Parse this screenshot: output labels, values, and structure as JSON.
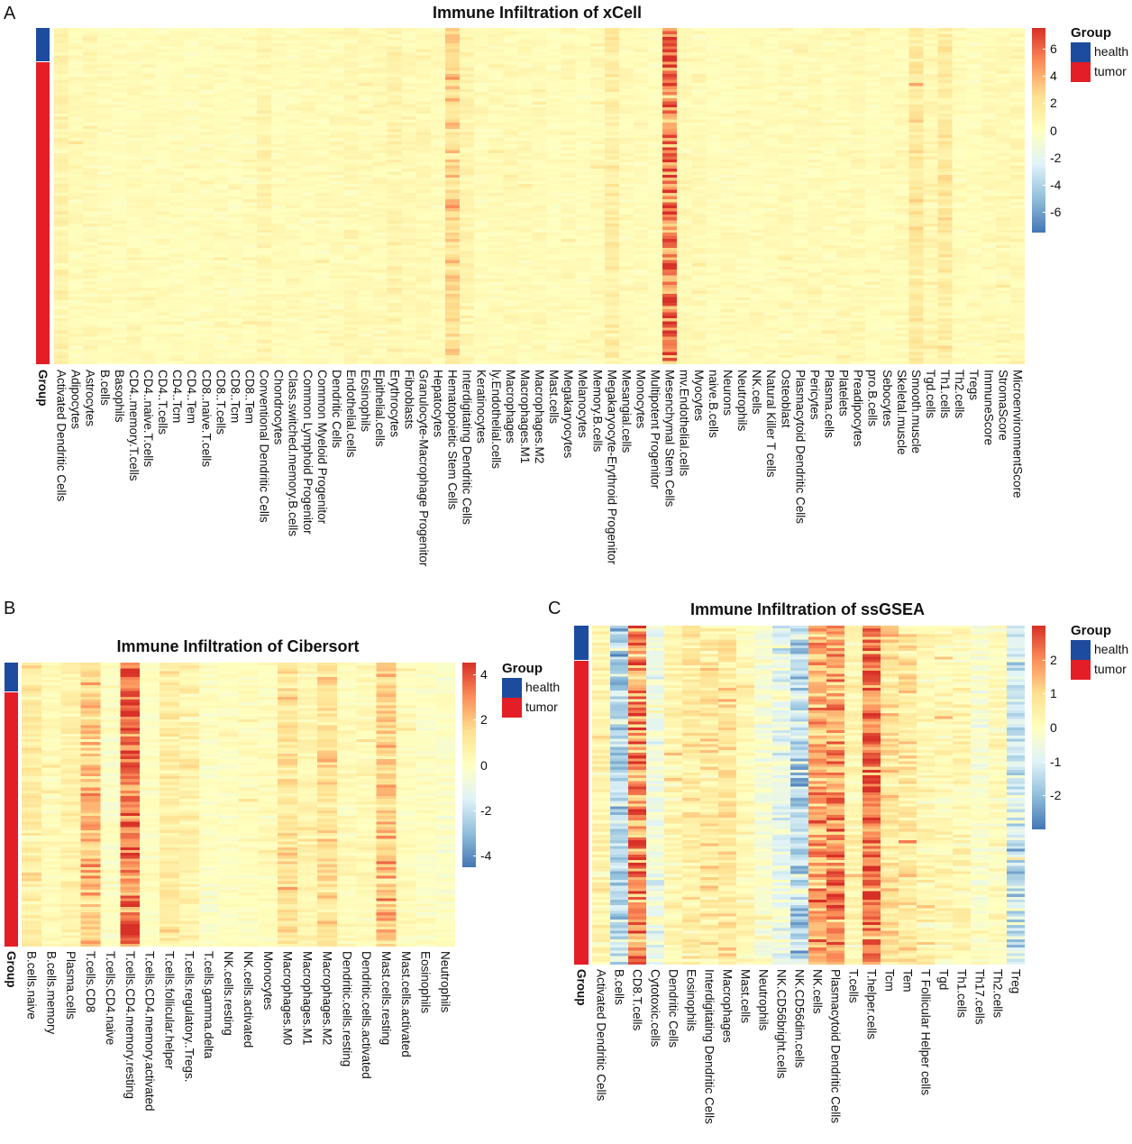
{
  "figure": {
    "panel_letters": [
      "A",
      "B",
      "C"
    ],
    "group_legend": {
      "title": "Group",
      "items": [
        {
          "label": "health",
          "color": "#1d4c9e"
        },
        {
          "label": "tumor",
          "color": "#e41e26"
        }
      ]
    },
    "group_row_label": "Group"
  },
  "chart_data": [
    {
      "type": "heatmap",
      "title": "Immune Infiltration of xCell",
      "colorbar_ticks": [
        6,
        4,
        2,
        0,
        -2,
        -4,
        -6
      ],
      "color_range": [
        -7.5,
        7.5
      ],
      "palette": [
        "#4575B4",
        "#91BFDB",
        "#E0F3F8",
        "#FFFFBF",
        "#FEE090",
        "#FC8D59",
        "#D73027"
      ],
      "health_fraction": 0.1,
      "columns": [
        "Activated Dendritic Cells",
        "Adipocytes",
        "Astrocytes",
        "B.cells",
        "Basophils",
        "CD4..memory.T.cells",
        "CD4..naive.T.cells",
        "CD4..T.cells",
        "CD4..Tcm",
        "CD4..Tem",
        "CD8..naive.T.cells",
        "CD8..T.cells",
        "CD8..Tcm",
        "CD8..Tem",
        "Conventional Dendritic Cells",
        "Chondrocytes",
        "Class.switched.memory.B.cells",
        "Common Lymphoid Progenitor",
        "Common Myeloid Progenitor",
        "Dendritic Cells",
        "Endothelial.cells",
        "Eosinophils",
        "Epithelial.cells",
        "Erythrocytes",
        "Fibroblasts",
        "Granulocyte-Macrophage Progenitor",
        "Hepatocytes",
        "Hematopoietic Stem Cells",
        "Interdigitating Dendritic Cells",
        "Keratinocytes",
        "ly.Endothelial.cells",
        "Macrophages",
        "Macrophages.M1",
        "Macrophages.M2",
        "Mast.cells",
        "Megakaryocytes",
        "Melanocytes",
        "Memory.B.cells",
        "Megakaryocyte-Erythroid Progenitor",
        "Mesangial.cells",
        "Monocytes",
        "Multipotent Progenitor",
        "Mesenchymal Stem Cells",
        "mv.Endothelial.cells",
        "Myocytes",
        "naive.B.cells",
        "Neurons",
        "Neutrophils",
        "NK.cells",
        "Natural Killer T cells",
        "Osteoblast",
        "Plasmacytoid Dendritic Cells",
        "Pericytes",
        "Plasma.cells",
        "Platelets",
        "Preadipocytes",
        "pro.B.cells",
        "Sebocytes",
        "Skeletal.muscle",
        "Smooth.muscle",
        "Tgd.cells",
        "Th1.cells",
        "Th2.cells",
        "Tregs",
        "ImmuneScore",
        "StromaScore",
        "MicroenvironmentScore"
      ],
      "column_means": [
        0.9,
        0.4,
        0.5,
        0.3,
        0.2,
        0.3,
        0.3,
        0.2,
        0.3,
        0.2,
        0.3,
        0.3,
        0.2,
        0.2,
        0.8,
        0.3,
        0.3,
        0.3,
        0.3,
        0.4,
        0.6,
        0.4,
        0.5,
        0.8,
        0.5,
        0.6,
        0.3,
        2.4,
        0.8,
        0.3,
        0.4,
        0.4,
        0.4,
        0.4,
        0.2,
        0.4,
        0.2,
        0.4,
        1.4,
        0.4,
        0.3,
        0.2,
        5.5,
        0.5,
        0.5,
        0.2,
        0.3,
        0.3,
        0.3,
        0.3,
        0.4,
        0.3,
        0.4,
        0.3,
        0.4,
        0.5,
        0.2,
        0.3,
        0.4,
        1.8,
        0.6,
        1.6,
        0.3,
        0.2,
        0.4,
        0.5,
        0.6
      ]
    },
    {
      "type": "heatmap",
      "title": "Immune Infiltration of Cibersort",
      "colorbar_ticks": [
        4,
        2,
        0,
        -2,
        -4
      ],
      "color_range": [
        -4.5,
        4.5
      ],
      "palette": [
        "#4575B4",
        "#91BFDB",
        "#E0F3F8",
        "#FFFFBF",
        "#FEE090",
        "#FC8D59",
        "#D73027"
      ],
      "health_fraction": 0.1,
      "columns": [
        "B.cells.naive",
        "B.cells.memory",
        "Plasma.cells",
        "T.cells.CD8",
        "T.cells.CD4.naive",
        "T.cells.CD4.memory.resting",
        "T.cells.CD4.memory.activated",
        "T.cells.follicular.helper",
        "T.cells.regulatory..Tregs.",
        "T.cells.gamma.delta",
        "NK.cells.resting",
        "NK.cells.activated",
        "Monocytes",
        "Macrophages.M0",
        "Macrophages.M1",
        "Macrophages.M2",
        "Dendritic.cells.resting",
        "Dendritic.cells.activated",
        "Mast.cells.resting",
        "Mast.cells.activated",
        "Eosinophils",
        "Neutrophils"
      ],
      "column_means": [
        0.9,
        0.2,
        0.6,
        1.9,
        -0.1,
        3.4,
        0.0,
        0.8,
        0.6,
        -0.1,
        0.0,
        0.1,
        0.1,
        1.2,
        0.5,
        1.3,
        0.2,
        0.3,
        1.8,
        0.1,
        0.0,
        -0.1
      ]
    },
    {
      "type": "heatmap",
      "title": "Immune Infiltration of ssGSEA",
      "colorbar_ticks": [
        2,
        1,
        0,
        -1,
        -2
      ],
      "color_range": [
        -3,
        3
      ],
      "palette": [
        "#4575B4",
        "#91BFDB",
        "#E0F3F8",
        "#FFFFBF",
        "#FEE090",
        "#FC8D59",
        "#D73027"
      ],
      "health_fraction": 0.1,
      "columns": [
        "Activated Dendritic Cells",
        "B.cells",
        "CD8.T.cells",
        "Cytotoxic.cells",
        "Dendritic Cells",
        "Eosinophils",
        "Interdigitating Dendritic Cells",
        "Macrophages",
        "Mast.cells",
        "Neutrophils",
        "NK.CD56bright.cells",
        "NK.CD56dim.cells",
        "NK.cells",
        "Plasmacytoid Dendritic Cells",
        "T.cells",
        "T.helper.cells",
        "Tcm",
        "Tem",
        "T Follicular Helper cells",
        "Tgd",
        "Th1.cells",
        "Th17.cells",
        "Th2.cells",
        "Treg"
      ],
      "column_means": [
        0.3,
        -1.5,
        2.0,
        -0.5,
        0.3,
        0.6,
        0.6,
        0.7,
        0.2,
        -0.3,
        -0.7,
        -1.5,
        1.6,
        1.8,
        0.3,
        2.3,
        0.8,
        0.7,
        0.3,
        0.2,
        0.3,
        -0.2,
        0.1,
        -1.2
      ]
    }
  ]
}
